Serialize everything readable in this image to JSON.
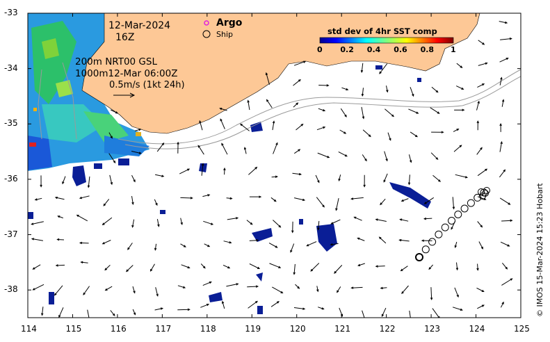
{
  "map": {
    "date": "12-Mar-2024",
    "hour": "16Z",
    "isobath_line1": "200m  NRT00 GSL",
    "isobath_line2": "1000m12-Mar 06:00Z",
    "vector_scale": "0.5m/s (1kt 24h)",
    "legend": {
      "argo_label": "Argo",
      "ship_label": "Ship",
      "argo_color": "#e020e0"
    },
    "colorbar": {
      "title": "std dev of 4hr SST comp",
      "ticks": [
        "0",
        "0.2",
        "0.4",
        "0.6",
        "0.8",
        "1"
      ],
      "colormap": "jet"
    },
    "credit": "© IMOS 15-Mar-2024 15:23 Hobart",
    "axes": {
      "x_ticks": [
        "114",
        "115",
        "116",
        "117",
        "118",
        "119",
        "120",
        "121",
        "122",
        "123",
        "124",
        "125"
      ],
      "y_ticks": [
        "-33",
        "-34",
        "-35",
        "-36",
        "-37",
        "-38"
      ],
      "lon_range": [
        114,
        125
      ],
      "lat_range": [
        -38.5,
        -33
      ]
    },
    "colors": {
      "land": "#fdc896",
      "low_value": "#0a1e96"
    }
  }
}
